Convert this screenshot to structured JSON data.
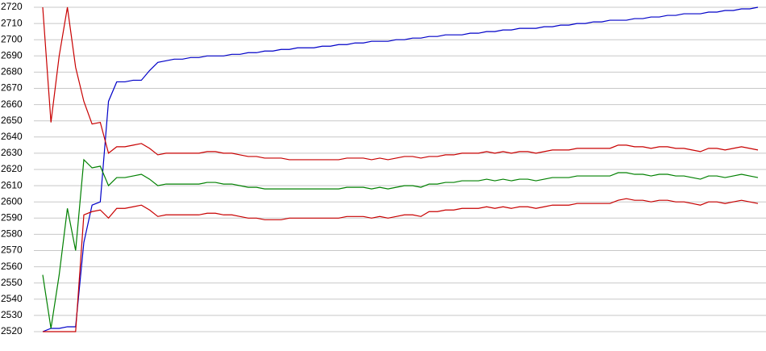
{
  "chart_data": {
    "type": "line",
    "ylim": [
      2520,
      2720
    ],
    "yticks": [
      2520,
      2530,
      2540,
      2550,
      2560,
      2570,
      2580,
      2590,
      2600,
      2610,
      2620,
      2630,
      2640,
      2650,
      2660,
      2670,
      2680,
      2690,
      2700,
      2710,
      2720
    ],
    "grid": true,
    "series": [
      {
        "color": "#0000c8",
        "values": [
          2520,
          2522,
          2522,
          2523,
          2523,
          2575,
          2598,
          2600,
          2662,
          2674,
          2674,
          2675,
          2675,
          2681,
          2686,
          2687,
          2688,
          2688,
          2689,
          2689,
          2690,
          2690,
          2690,
          2691,
          2691,
          2692,
          2692,
          2693,
          2693,
          2694,
          2694,
          2695,
          2695,
          2695,
          2696,
          2696,
          2697,
          2697,
          2698,
          2698,
          2699,
          2699,
          2699,
          2700,
          2700,
          2701,
          2701,
          2702,
          2702,
          2703,
          2703,
          2703,
          2704,
          2704,
          2705,
          2705,
          2706,
          2706,
          2707,
          2707,
          2707,
          2708,
          2708,
          2709,
          2709,
          2710,
          2710,
          2711,
          2711,
          2712,
          2712,
          2712,
          2713,
          2713,
          2714,
          2714,
          2715,
          2715,
          2716,
          2716,
          2716,
          2717,
          2717,
          2718,
          2718,
          2719,
          2719,
          2720
        ]
      },
      {
        "color": "#c80000",
        "values": [
          2720,
          2649,
          2690,
          2720,
          2683,
          2662,
          2648,
          2649,
          2630,
          2634,
          2634,
          2635,
          2636,
          2633,
          2629,
          2630,
          2630,
          2630,
          2630,
          2630,
          2631,
          2631,
          2630,
          2630,
          2629,
          2628,
          2628,
          2627,
          2627,
          2627,
          2626,
          2626,
          2626,
          2626,
          2626,
          2626,
          2626,
          2627,
          2627,
          2627,
          2626,
          2627,
          2626,
          2627,
          2628,
          2628,
          2627,
          2628,
          2628,
          2629,
          2629,
          2630,
          2630,
          2630,
          2631,
          2630,
          2631,
          2630,
          2631,
          2631,
          2630,
          2631,
          2632,
          2632,
          2632,
          2633,
          2633,
          2633,
          2633,
          2633,
          2635,
          2635,
          2634,
          2634,
          2633,
          2634,
          2634,
          2633,
          2633,
          2632,
          2631,
          2633,
          2633,
          2632,
          2633,
          2634,
          2633,
          2632
        ]
      },
      {
        "color": "#008000",
        "values": [
          2555,
          2522,
          2555,
          2596,
          2570,
          2626,
          2621,
          2622,
          2610,
          2615,
          2615,
          2616,
          2617,
          2614,
          2610,
          2611,
          2611,
          2611,
          2611,
          2611,
          2612,
          2612,
          2611,
          2611,
          2610,
          2609,
          2609,
          2608,
          2608,
          2608,
          2608,
          2608,
          2608,
          2608,
          2608,
          2608,
          2608,
          2609,
          2609,
          2609,
          2608,
          2609,
          2608,
          2609,
          2610,
          2610,
          2609,
          2611,
          2611,
          2612,
          2612,
          2613,
          2613,
          2613,
          2614,
          2613,
          2614,
          2613,
          2614,
          2614,
          2613,
          2614,
          2615,
          2615,
          2615,
          2616,
          2616,
          2616,
          2616,
          2616,
          2618,
          2618,
          2617,
          2617,
          2616,
          2617,
          2617,
          2616,
          2616,
          2615,
          2614,
          2616,
          2616,
          2615,
          2616,
          2617,
          2616,
          2615
        ]
      },
      {
        "color": "#c80000",
        "values": [
          2520,
          2520,
          2520,
          2520,
          2520,
          2592,
          2594,
          2595,
          2590,
          2596,
          2596,
          2597,
          2598,
          2595,
          2591,
          2592,
          2592,
          2592,
          2592,
          2592,
          2593,
          2593,
          2592,
          2592,
          2591,
          2590,
          2590,
          2589,
          2589,
          2589,
          2590,
          2590,
          2590,
          2590,
          2590,
          2590,
          2590,
          2591,
          2591,
          2591,
          2590,
          2591,
          2590,
          2591,
          2592,
          2592,
          2591,
          2594,
          2594,
          2595,
          2595,
          2596,
          2596,
          2596,
          2597,
          2596,
          2597,
          2596,
          2597,
          2597,
          2596,
          2597,
          2598,
          2598,
          2598,
          2599,
          2599,
          2599,
          2599,
          2599,
          2601,
          2602,
          2601,
          2601,
          2600,
          2601,
          2601,
          2600,
          2600,
          2599,
          2598,
          2600,
          2600,
          2599,
          2600,
          2601,
          2600,
          2599
        ]
      }
    ]
  }
}
